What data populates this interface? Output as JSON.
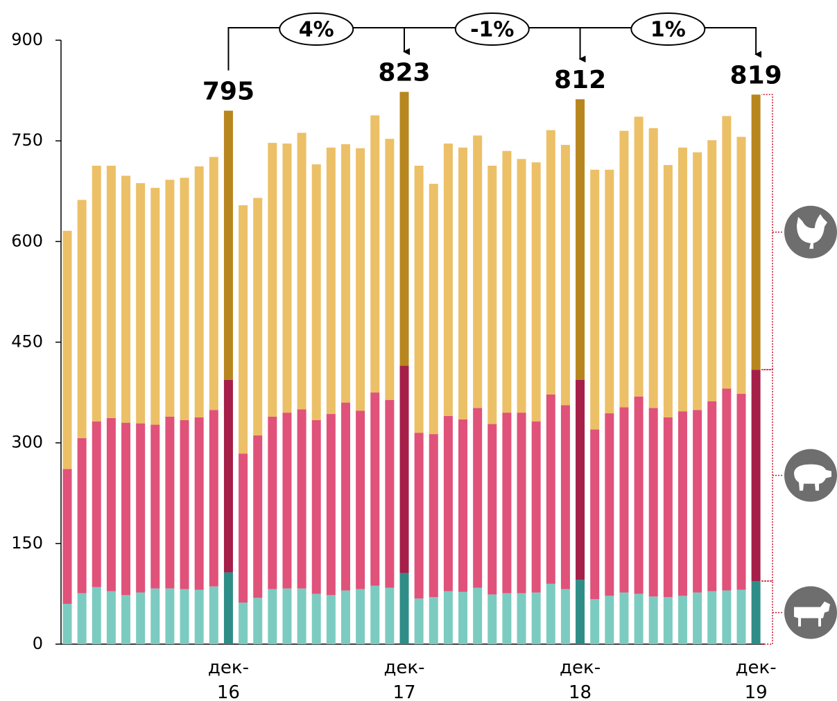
{
  "chart_data": {
    "type": "stacked_bar",
    "categories": [
      null,
      null,
      null,
      null,
      null,
      null,
      null,
      null,
      null,
      null,
      null,
      "дек-16",
      null,
      null,
      null,
      null,
      null,
      null,
      null,
      null,
      null,
      null,
      null,
      "дек-17",
      null,
      null,
      null,
      null,
      null,
      null,
      null,
      null,
      null,
      null,
      null,
      "дек-18",
      null,
      null,
      null,
      null,
      null,
      null,
      null,
      null,
      null,
      null,
      null,
      "дек-19"
    ],
    "series": [
      {
        "color": "#7ccbc1",
        "highlight_color": "#2f8d87",
        "values": [
          60,
          76,
          85,
          79,
          73,
          77,
          83,
          83,
          82,
          81,
          86,
          107,
          62,
          69,
          82,
          83,
          83,
          75,
          73,
          80,
          82,
          87,
          84,
          106,
          68,
          70,
          79,
          78,
          84,
          74,
          76,
          76,
          77,
          90,
          82,
          96,
          67,
          72,
          77,
          75,
          71,
          70,
          72,
          77,
          79,
          80,
          81,
          94
        ]
      },
      {
        "color": "#e0527a",
        "highlight_color": "#a51f48",
        "values": [
          201,
          231,
          247,
          258,
          257,
          252,
          244,
          256,
          252,
          257,
          263,
          287,
          222,
          242,
          257,
          262,
          267,
          259,
          270,
          280,
          266,
          288,
          280,
          309,
          247,
          243,
          261,
          257,
          268,
          254,
          269,
          269,
          255,
          282,
          274,
          298,
          253,
          272,
          276,
          294,
          281,
          268,
          275,
          272,
          283,
          301,
          292,
          315
        ]
      },
      {
        "color": "#ecc067",
        "highlight_color": "#b8861f",
        "values": [
          355,
          355,
          381,
          376,
          368,
          358,
          353,
          353,
          361,
          374,
          377,
          401,
          370,
          354,
          408,
          401,
          412,
          381,
          397,
          385,
          391,
          413,
          389,
          408,
          398,
          373,
          406,
          405,
          406,
          385,
          390,
          378,
          386,
          394,
          388,
          418,
          387,
          363,
          412,
          417,
          417,
          376,
          393,
          384,
          389,
          406,
          383,
          410
        ]
      }
    ],
    "totals": [
      null,
      null,
      null,
      null,
      null,
      null,
      null,
      null,
      null,
      null,
      null,
      795,
      null,
      null,
      null,
      null,
      null,
      null,
      null,
      null,
      null,
      null,
      null,
      823,
      null,
      null,
      null,
      null,
      null,
      null,
      null,
      null,
      null,
      null,
      null,
      812,
      null,
      null,
      null,
      null,
      null,
      null,
      null,
      null,
      null,
      null,
      null,
      819
    ],
    "changes": [
      "4%",
      "-1%",
      "1%"
    ],
    "ylim": [
      0,
      900
    ],
    "yticks": [
      0,
      150,
      300,
      450,
      600,
      750,
      900
    ]
  }
}
